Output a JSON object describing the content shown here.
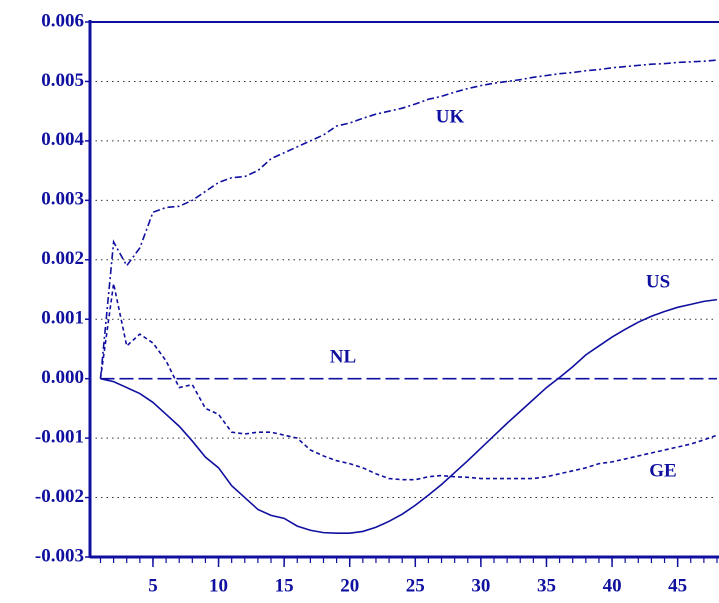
{
  "chart_data": {
    "type": "line",
    "x": [
      1,
      2,
      3,
      4,
      5,
      6,
      7,
      8,
      9,
      10,
      11,
      12,
      13,
      14,
      15,
      16,
      17,
      18,
      19,
      20,
      21,
      22,
      23,
      24,
      25,
      26,
      27,
      28,
      29,
      30,
      31,
      32,
      33,
      34,
      35,
      36,
      37,
      38,
      39,
      40,
      41,
      42,
      43,
      44,
      45,
      46,
      47,
      48
    ],
    "xlim": [
      0.2,
      48
    ],
    "xticks": [
      5,
      10,
      15,
      20,
      25,
      30,
      35,
      40,
      45
    ],
    "ylim": [
      -0.003,
      0.006
    ],
    "yticks": [
      {
        "value": -0.003,
        "label": "-0.003"
      },
      {
        "value": -0.002,
        "label": "-0.002"
      },
      {
        "value": -0.001,
        "label": "-0.001"
      },
      {
        "value": 0,
        "label": "0.000"
      },
      {
        "value": 0.001,
        "label": "0.001"
      },
      {
        "value": 0.002,
        "label": "0.002"
      },
      {
        "value": 0.003,
        "label": "0.003"
      },
      {
        "value": 0.004,
        "label": "0.004"
      },
      {
        "value": 0.005,
        "label": "0.005"
      },
      {
        "value": 0.006,
        "label": "0.006"
      }
    ],
    "grid": true,
    "series": [
      {
        "name": "UK",
        "color": "#1010a0",
        "line_style": "dashdot",
        "values": [
          0,
          0.0023,
          0.0019,
          0.0022,
          0.0028,
          0.00288,
          0.0029,
          0.003,
          0.00315,
          0.0033,
          0.00338,
          0.0034,
          0.0035,
          0.0037,
          0.0038,
          0.0039,
          0.004,
          0.0041,
          0.00425,
          0.0043,
          0.00438,
          0.00445,
          0.0045,
          0.00455,
          0.00462,
          0.0047,
          0.00475,
          0.00482,
          0.00488,
          0.00493,
          0.00497,
          0.005,
          0.00503,
          0.00507,
          0.0051,
          0.00513,
          0.00515,
          0.00518,
          0.0052,
          0.00523,
          0.00525,
          0.00527,
          0.00529,
          0.0053,
          0.00532,
          0.00533,
          0.00534,
          0.00536
        ]
      },
      {
        "name": "US",
        "color": "#1010a0",
        "line_style": "solid",
        "values": [
          0,
          -5e-05,
          -0.00015,
          -0.00025,
          -0.0004,
          -0.0006,
          -0.0008,
          -0.00105,
          -0.00132,
          -0.0015,
          -0.0018,
          -0.002,
          -0.0022,
          -0.0023,
          -0.00235,
          -0.00248,
          -0.00255,
          -0.00259,
          -0.0026,
          -0.0026,
          -0.00257,
          -0.0025,
          -0.0024,
          -0.00228,
          -0.00213,
          -0.00196,
          -0.00178,
          -0.00158,
          -0.00138,
          -0.00117,
          -0.00096,
          -0.00075,
          -0.00055,
          -0.00035,
          -0.00015,
          2e-05,
          0.0002,
          0.0004,
          0.00055,
          0.0007,
          0.00083,
          0.00095,
          0.00105,
          0.00113,
          0.0012,
          0.00125,
          0.0013,
          0.00133
        ]
      },
      {
        "name": "GE",
        "color": "#1010a0",
        "line_style": "dash",
        "values": [
          0,
          0.0016,
          0.00055,
          0.00075,
          0.0006,
          0.0003,
          -0.00015,
          -0.0001,
          -0.0005,
          -0.0006,
          -0.0009,
          -0.00093,
          -0.0009,
          -0.0009,
          -0.00095,
          -0.001,
          -0.0012,
          -0.0013,
          -0.00138,
          -0.00143,
          -0.0015,
          -0.0016,
          -0.00168,
          -0.0017,
          -0.0017,
          -0.00165,
          -0.00163,
          -0.00165,
          -0.00166,
          -0.00168,
          -0.00168,
          -0.00168,
          -0.00168,
          -0.00168,
          -0.00165,
          -0.0016,
          -0.00155,
          -0.0015,
          -0.00143,
          -0.0014,
          -0.00135,
          -0.0013,
          -0.00125,
          -0.0012,
          -0.00115,
          -0.0011,
          -0.00103,
          -0.00095
        ]
      },
      {
        "name": "NL",
        "color": "#1010a0",
        "line_style": "longdash",
        "values": [
          0,
          0,
          0,
          0,
          0,
          0,
          0,
          0,
          0,
          0,
          0,
          0,
          0,
          0,
          0,
          0,
          0,
          0,
          0,
          0,
          0,
          0,
          0,
          0,
          0,
          0,
          0,
          0,
          0,
          0,
          0,
          0,
          0,
          0,
          0,
          0,
          0,
          0,
          0,
          0,
          0,
          0,
          0,
          0,
          0,
          0,
          0,
          0
        ]
      }
    ]
  }
}
